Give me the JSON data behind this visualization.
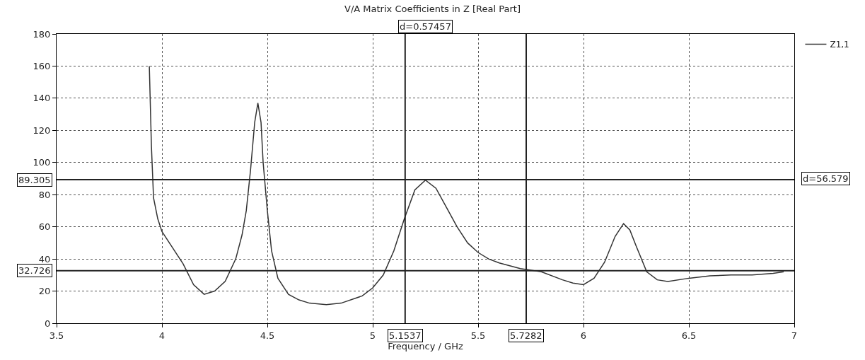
{
  "chart_data": {
    "type": "line",
    "title": "V/A Matrix Coefficients in Z [Real Part]",
    "xlabel": "Frequency / GHz",
    "x": [
      3.94,
      3.95,
      3.96,
      3.98,
      4.0,
      4.05,
      4.1,
      4.15,
      4.2,
      4.25,
      4.3,
      4.35,
      4.38,
      4.4,
      4.42,
      4.44,
      4.455,
      4.47,
      4.48,
      4.5,
      4.52,
      4.55,
      4.6,
      4.65,
      4.7,
      4.78,
      4.85,
      4.95,
      5.0,
      5.05,
      5.1,
      5.15,
      5.2,
      5.25,
      5.3,
      5.35,
      5.4,
      5.45,
      5.5,
      5.55,
      5.6,
      5.7,
      5.8,
      5.9,
      5.95,
      6.0,
      6.05,
      6.1,
      6.15,
      6.19,
      6.22,
      6.25,
      6.3,
      6.35,
      6.4,
      6.5,
      6.6,
      6.7,
      6.8,
      6.9,
      6.95
    ],
    "series": [
      {
        "name": "Z1,1",
        "color": "#333333",
        "values": [
          160,
          110,
          78,
          65,
          57,
          47,
          37,
          24,
          18,
          20,
          26,
          40,
          55,
          70,
          95,
          125,
          137,
          125,
          100,
          70,
          45,
          28,
          18,
          14.5,
          12.5,
          11.5,
          12.5,
          17,
          22,
          30,
          45,
          65,
          83,
          89,
          84,
          72,
          60,
          50,
          44,
          40,
          37.5,
          34,
          32,
          27,
          25,
          24,
          28,
          38,
          54,
          62,
          58,
          48,
          32,
          27,
          26,
          28,
          29.5,
          30,
          30,
          31,
          32
        ]
      }
    ],
    "xlim": [
      3.5,
      7
    ],
    "xticks": [
      3.5,
      4,
      4.5,
      5,
      5.5,
      6,
      6.5,
      7
    ],
    "ylim": [
      0,
      180
    ],
    "yticks": [
      0,
      20,
      40,
      60,
      80,
      100,
      120,
      140,
      160,
      180
    ],
    "grid": true,
    "legend": "top right",
    "line_style": "solid",
    "marker": "none",
    "ref_lines": [
      {
        "axis": "x",
        "value": 5.1537,
        "label": "5.1537",
        "color": "#222222"
      },
      {
        "axis": "x",
        "value": 5.7282,
        "label": "5.7282",
        "color": "#222222"
      },
      {
        "axis": "y",
        "value": 89.305,
        "label": "89.305",
        "color": "#222222"
      },
      {
        "axis": "y",
        "value": 32.726,
        "label": "32.726",
        "color": "#222222"
      }
    ],
    "annotations": [
      "d=0.57457",
      "d=56.579"
    ]
  }
}
